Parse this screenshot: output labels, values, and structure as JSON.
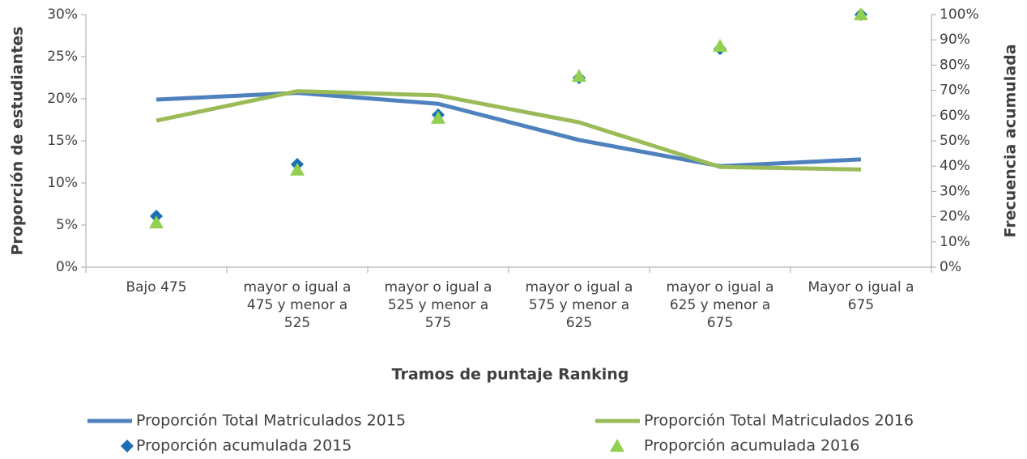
{
  "chart_data": {
    "type": "line",
    "x_label": "Tramos de puntaje Ranking",
    "y_label": "Proporción de estudiantes",
    "y2_label": "Frecuencia acumulada",
    "categories": [
      "Bajo 475",
      "mayor o igual a 475 y menor a 525",
      "mayor o igual a 525 y menor a 575",
      "mayor o igual a 575 y menor a 625",
      "mayor o igual a 625 y menor a 675",
      "Mayor o igual a 675"
    ],
    "ylim": [
      0,
      30
    ],
    "yticks": [
      {
        "value": 0,
        "label": "0%"
      },
      {
        "value": 5,
        "label": "5%"
      },
      {
        "value": 10,
        "label": "10%"
      },
      {
        "value": 15,
        "label": "15%"
      },
      {
        "value": 20,
        "label": "20%"
      },
      {
        "value": 25,
        "label": "25%"
      },
      {
        "value": 30,
        "label": "30%"
      }
    ],
    "y2lim": [
      0,
      100
    ],
    "y2ticks": [
      {
        "value": 0,
        "label": "0%"
      },
      {
        "value": 10,
        "label": "10%"
      },
      {
        "value": 20,
        "label": "20%"
      },
      {
        "value": 30,
        "label": "30%"
      },
      {
        "value": 40,
        "label": "40%"
      },
      {
        "value": 50,
        "label": "50%"
      },
      {
        "value": 60,
        "label": "60%"
      },
      {
        "value": 70,
        "label": "70%"
      },
      {
        "value": 80,
        "label": "80%"
      },
      {
        "value": 90,
        "label": "90%"
      },
      {
        "value": 100,
        "label": "100%"
      }
    ],
    "series": [
      {
        "name": "Proporción Total Matriculados 2015",
        "type": "line",
        "color": "#4f81bd",
        "values": [
          19.9,
          20.7,
          19.4,
          15.1,
          12.0,
          12.8
        ]
      },
      {
        "name": "Proporción Total Matriculados 2016",
        "type": "line",
        "color": "#9bbb59",
        "values": [
          17.4,
          20.9,
          20.4,
          17.2,
          11.9,
          11.6
        ]
      },
      {
        "name": "Proporción acumulada 2015",
        "type": "scatter",
        "marker": "diamond",
        "axis": "y2",
        "color": "#1a6fb5",
        "values": [
          20.2,
          40.7,
          60.3,
          75.0,
          86.5,
          100
        ]
      },
      {
        "name": "Proporción acumulada 2016",
        "type": "scatter",
        "marker": "triangle",
        "axis": "y2",
        "color": "#92d050",
        "values": [
          17.6,
          38.5,
          59.0,
          75.6,
          87.5,
          100
        ]
      }
    ]
  }
}
